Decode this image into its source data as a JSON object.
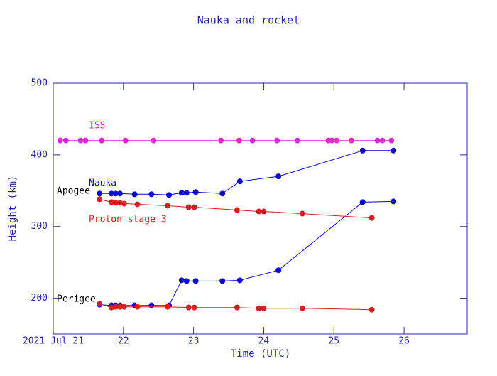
{
  "chart_data": {
    "type": "line",
    "title": "Nauka and rocket",
    "xlabel": "Time (UTC)",
    "ylabel": "Height (km)",
    "xlim": [
      21,
      26.9
    ],
    "xticks": [
      {
        "value": 21,
        "label": "2021 Jul 21"
      },
      22,
      23,
      24,
      25,
      26
    ],
    "ylim": [
      150,
      500
    ],
    "yticks": [
      200,
      300,
      400,
      500
    ],
    "annotations": [
      "Apogee",
      "Perigee"
    ],
    "series": [
      {
        "name": "ISS",
        "color": "#d42fd4",
        "x": [
          21.1,
          21.18,
          21.39,
          21.46,
          21.69,
          22.03,
          22.43,
          23.39,
          23.65,
          23.84,
          24.19,
          24.48,
          24.92,
          24.97,
          25.04,
          25.25,
          25.62,
          25.69,
          25.82
        ],
        "values": [
          420,
          420,
          420,
          420,
          420,
          420,
          420,
          420,
          420,
          420,
          420,
          420,
          420,
          420,
          420,
          420,
          420,
          420,
          420
        ]
      },
      {
        "name": "Nauka",
        "color": "#0a0ad0",
        "x": [
          21.66,
          21.83,
          21.89,
          21.95,
          22.16,
          22.4,
          22.65,
          22.83,
          22.9,
          23.03,
          23.41,
          23.66,
          24.21,
          25.41,
          25.85
        ],
        "values": [
          346,
          346,
          346,
          346,
          345,
          345,
          344,
          347,
          347,
          348,
          346,
          363,
          370,
          406,
          406
        ]
      },
      {
        "color": "#0a0ad0",
        "x": [
          21.66,
          21.83,
          21.89,
          21.95,
          22.16,
          22.4,
          22.65,
          22.83,
          22.9,
          23.03,
          23.41,
          23.66,
          24.21,
          25.41,
          25.85
        ],
        "values": [
          191,
          190,
          190,
          190,
          190,
          190,
          190,
          225,
          224,
          224,
          224,
          225,
          239,
          334,
          335
        ]
      },
      {
        "name": "Proton stage 3",
        "color": "#d42020",
        "x": [
          21.66,
          21.83,
          21.89,
          21.95,
          22.01,
          22.2,
          22.63,
          22.93,
          23.01,
          23.62,
          23.93,
          24.0,
          24.55,
          25.54
        ],
        "values": [
          338,
          334,
          333,
          333,
          332,
          331,
          329,
          327,
          327,
          323,
          321,
          321,
          318,
          312
        ]
      },
      {
        "color": "#d42020",
        "x": [
          21.66,
          21.83,
          21.89,
          21.95,
          22.01,
          22.2,
          22.63,
          22.93,
          23.01,
          23.62,
          23.93,
          24.0,
          24.55,
          25.54
        ],
        "values": [
          192,
          187,
          188,
          188,
          188,
          188,
          188,
          187,
          187,
          187,
          186,
          186,
          186,
          184
        ]
      }
    ]
  }
}
